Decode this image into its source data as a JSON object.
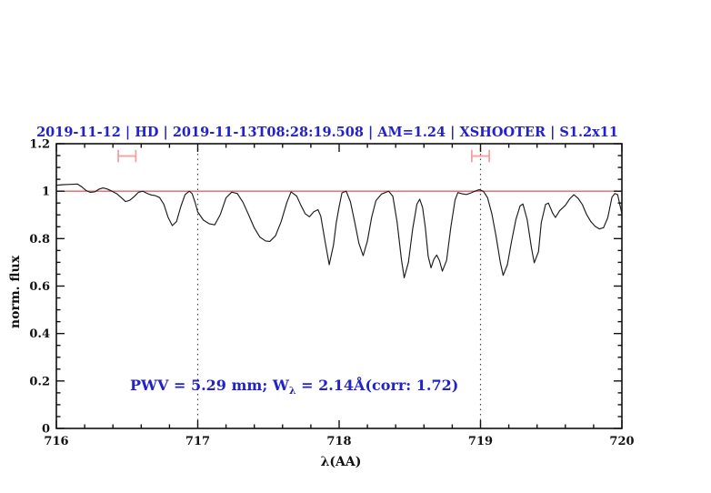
{
  "figure": {
    "title": "2019-11-12 | HD | 2019-11-13T08:28:19.508 | AM=1.24 | XSHOOTER | S1.2x11",
    "title_color": "#2222cc",
    "annotation": {
      "part1": "PWV = 5.29 mm; W",
      "sub": "λ",
      "part2": " = 2.14Å(corr: 1.72)",
      "color": "#2222cc"
    },
    "x_label": "λ(AA)",
    "y_label": "norm. flux"
  },
  "chart_data": {
    "type": "line",
    "title": "2019-11-12 | HD | 2019-11-13T08:28:19.508 | AM=1.24 | XSHOOTER | S1.2x11",
    "xlabel": "λ(AA)",
    "ylabel": "norm. flux",
    "xlim": [
      716,
      720
    ],
    "ylim": [
      0,
      1.2
    ],
    "grid": false,
    "legend": "none",
    "x_major_ticks": [
      716,
      717,
      718,
      719,
      720
    ],
    "x_tick_labels": [
      "716",
      "717",
      "718",
      "719",
      "720"
    ],
    "x_minor_step": 0.2,
    "y_major_ticks": [
      0,
      0.2,
      0.4,
      0.6,
      0.8,
      1,
      1.2
    ],
    "y_tick_labels": [
      "0",
      "0.2",
      "0.4",
      "0.6",
      "0.8",
      "1",
      "1.2"
    ],
    "y_minor_step": 0.05,
    "dotted_vlines": [
      717,
      719
    ],
    "continuum_level": 1.0,
    "continuum_color": "#e06666",
    "marker_color": "#f4a0a0",
    "spectrum_color": "#1c1c1c",
    "markers": [
      {
        "x_center": 716.5,
        "half_width": 0.062,
        "flux_center": 1.148,
        "cap_half_height": 0.026
      },
      {
        "x_center": 719.0,
        "half_width": 0.062,
        "flux_center": 1.148,
        "cap_half_height": 0.026
      }
    ],
    "series": [
      {
        "name": "telluric-corrected-spectrum",
        "x": [
          716.0,
          716.04,
          716.08,
          716.12,
          716.15,
          716.18,
          716.21,
          716.24,
          716.27,
          716.3,
          716.33,
          716.36,
          716.4,
          716.43,
          716.46,
          716.49,
          716.52,
          716.55,
          716.58,
          716.61,
          716.64,
          716.67,
          716.7,
          716.73,
          716.76,
          716.79,
          716.82,
          716.85,
          716.88,
          716.91,
          716.94,
          716.96,
          716.98,
          717.0,
          717.04,
          717.08,
          717.12,
          717.16,
          717.2,
          717.24,
          717.28,
          717.32,
          717.36,
          717.4,
          717.44,
          717.48,
          717.51,
          717.55,
          717.59,
          717.63,
          717.66,
          717.7,
          717.73,
          717.76,
          717.79,
          717.82,
          717.85,
          717.87,
          717.9,
          717.93,
          717.96,
          717.98,
          718.0,
          718.02,
          718.05,
          718.08,
          718.11,
          718.14,
          718.17,
          718.2,
          718.23,
          718.26,
          718.3,
          718.33,
          718.35,
          718.38,
          718.41,
          718.44,
          718.46,
          718.49,
          718.52,
          718.55,
          718.57,
          718.59,
          718.61,
          718.63,
          718.65,
          718.67,
          718.69,
          718.71,
          718.73,
          718.76,
          718.79,
          718.82,
          718.84,
          718.87,
          718.9,
          718.93,
          718.96,
          718.99,
          719.02,
          719.05,
          719.08,
          719.11,
          719.14,
          719.16,
          719.19,
          719.22,
          719.25,
          719.28,
          719.3,
          719.33,
          719.36,
          719.38,
          719.41,
          719.43,
          719.46,
          719.48,
          719.51,
          719.53,
          719.56,
          719.6,
          719.63,
          719.66,
          719.69,
          719.72,
          719.75,
          719.78,
          719.81,
          719.84,
          719.87,
          719.9,
          719.93,
          719.95,
          719.97,
          720.0
        ],
        "y": [
          1.025,
          1.027,
          1.028,
          1.029,
          1.03,
          1.018,
          1.003,
          0.995,
          0.997,
          1.008,
          1.014,
          1.009,
          0.998,
          0.988,
          0.972,
          0.956,
          0.962,
          0.977,
          0.995,
          1.0,
          0.991,
          0.984,
          0.981,
          0.973,
          0.945,
          0.89,
          0.855,
          0.872,
          0.935,
          0.985,
          1.0,
          0.99,
          0.955,
          0.912,
          0.878,
          0.863,
          0.858,
          0.902,
          0.972,
          0.996,
          0.99,
          0.953,
          0.9,
          0.845,
          0.806,
          0.79,
          0.788,
          0.812,
          0.872,
          0.952,
          0.997,
          0.979,
          0.94,
          0.905,
          0.892,
          0.913,
          0.922,
          0.895,
          0.79,
          0.69,
          0.773,
          0.868,
          0.935,
          0.993,
          1.0,
          0.955,
          0.87,
          0.78,
          0.728,
          0.79,
          0.89,
          0.96,
          0.988,
          0.995,
          1.0,
          0.978,
          0.87,
          0.715,
          0.635,
          0.7,
          0.84,
          0.945,
          0.966,
          0.932,
          0.845,
          0.725,
          0.677,
          0.713,
          0.731,
          0.707,
          0.663,
          0.708,
          0.848,
          0.963,
          0.994,
          0.989,
          0.986,
          0.992,
          1.0,
          1.006,
          1.0,
          0.972,
          0.905,
          0.81,
          0.7,
          0.645,
          0.69,
          0.79,
          0.88,
          0.938,
          0.946,
          0.88,
          0.762,
          0.698,
          0.745,
          0.868,
          0.944,
          0.95,
          0.908,
          0.889,
          0.918,
          0.94,
          0.967,
          0.985,
          0.97,
          0.944,
          0.902,
          0.872,
          0.852,
          0.841,
          0.846,
          0.888,
          0.975,
          0.99,
          0.985,
          0.905
        ]
      }
    ]
  }
}
